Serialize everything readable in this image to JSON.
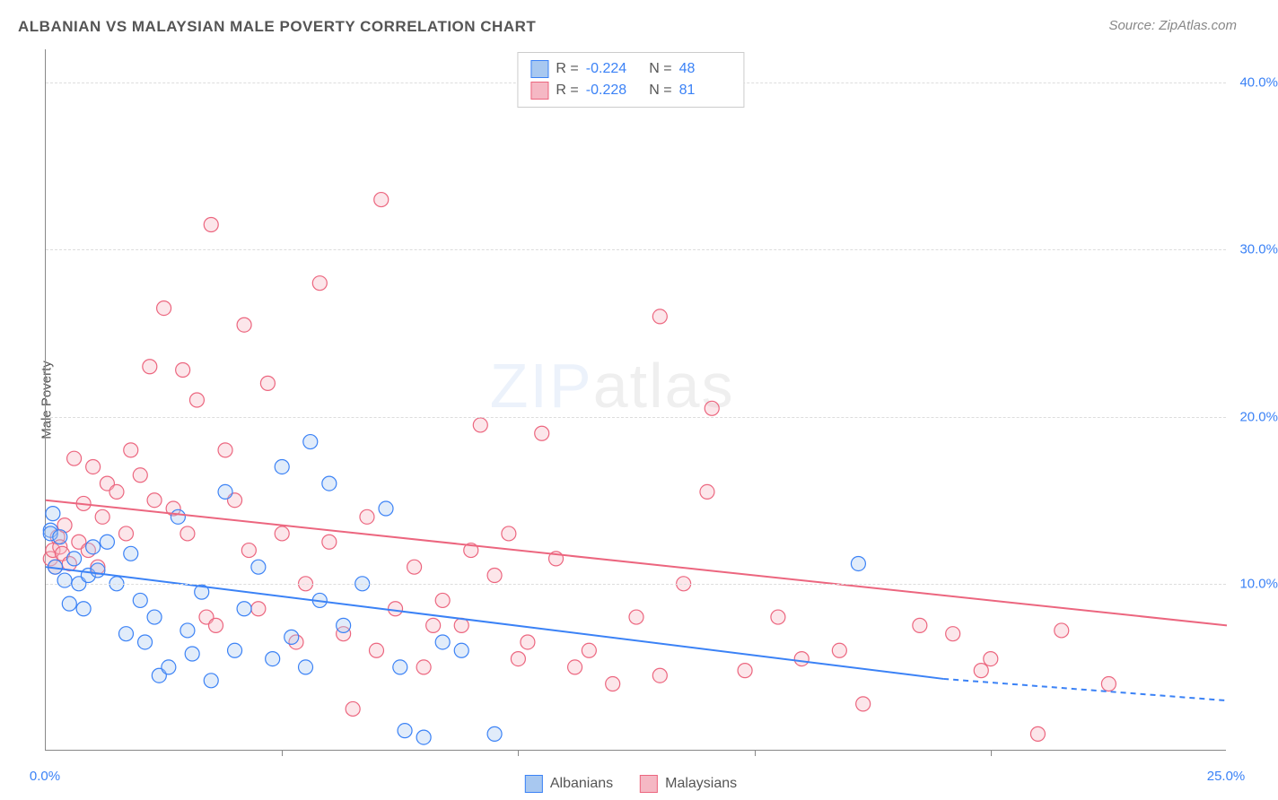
{
  "title": "ALBANIAN VS MALAYSIAN MALE POVERTY CORRELATION CHART",
  "source": "Source: ZipAtlas.com",
  "ylabel": "Male Poverty",
  "watermark": {
    "part1": "ZIP",
    "part2": "atlas"
  },
  "chart": {
    "type": "scatter",
    "background_color": "#ffffff",
    "grid_color": "#dddddd",
    "axis_color": "#888888",
    "tick_label_color": "#3b82f6",
    "title_color": "#555555",
    "title_fontsize": 17,
    "label_fontsize": 15,
    "xlim": [
      0,
      25
    ],
    "ylim": [
      0,
      42
    ],
    "xtick_step": 5,
    "ytick_step": 10,
    "xtick_labels": {
      "0": "0.0%",
      "25": "25.0%"
    },
    "ytick_labels": {
      "10": "10.0%",
      "20": "20.0%",
      "30": "30.0%",
      "40": "40.0%"
    },
    "marker_radius": 8,
    "marker_stroke_width": 1.2,
    "marker_fill_opacity": 0.35,
    "line_width": 2,
    "series": [
      {
        "name": "Albanians",
        "color_stroke": "#3b82f6",
        "color_fill": "#a8c8f0",
        "R": "-0.224",
        "N": "48",
        "trend": {
          "x0": 0,
          "y0": 11.0,
          "x1_solid": 19.0,
          "y1_solid": 4.3,
          "x1_dash": 25,
          "y1_dash": 3.0
        },
        "points": [
          [
            0.1,
            13.2
          ],
          [
            0.1,
            13.0
          ],
          [
            0.15,
            14.2
          ],
          [
            0.2,
            11.0
          ],
          [
            0.3,
            12.8
          ],
          [
            0.4,
            10.2
          ],
          [
            0.5,
            8.8
          ],
          [
            0.6,
            11.5
          ],
          [
            0.7,
            10.0
          ],
          [
            0.8,
            8.5
          ],
          [
            0.9,
            10.5
          ],
          [
            1.0,
            12.2
          ],
          [
            1.1,
            10.8
          ],
          [
            1.3,
            12.5
          ],
          [
            1.5,
            10.0
          ],
          [
            1.7,
            7.0
          ],
          [
            1.8,
            11.8
          ],
          [
            2.0,
            9.0
          ],
          [
            2.1,
            6.5
          ],
          [
            2.3,
            8.0
          ],
          [
            2.4,
            4.5
          ],
          [
            2.6,
            5.0
          ],
          [
            2.8,
            14.0
          ],
          [
            3.0,
            7.2
          ],
          [
            3.1,
            5.8
          ],
          [
            3.3,
            9.5
          ],
          [
            3.5,
            4.2
          ],
          [
            3.8,
            15.5
          ],
          [
            4.0,
            6.0
          ],
          [
            4.2,
            8.5
          ],
          [
            4.5,
            11.0
          ],
          [
            4.8,
            5.5
          ],
          [
            5.0,
            17.0
          ],
          [
            5.2,
            6.8
          ],
          [
            5.6,
            18.5
          ],
          [
            5.8,
            9.0
          ],
          [
            6.0,
            16.0
          ],
          [
            6.3,
            7.5
          ],
          [
            6.7,
            10.0
          ],
          [
            7.2,
            14.5
          ],
          [
            7.5,
            5.0
          ],
          [
            7.6,
            1.2
          ],
          [
            8.0,
            0.8
          ],
          [
            8.4,
            6.5
          ],
          [
            8.8,
            6.0
          ],
          [
            9.5,
            1.0
          ],
          [
            17.2,
            11.2
          ],
          [
            5.5,
            5.0
          ]
        ]
      },
      {
        "name": "Malaysians",
        "color_stroke": "#ec667f",
        "color_fill": "#f5b8c4",
        "R": "-0.228",
        "N": "81",
        "trend": {
          "x0": 0,
          "y0": 15.0,
          "x1_solid": 25,
          "y1_solid": 7.5,
          "x1_dash": 25,
          "y1_dash": 7.5
        },
        "points": [
          [
            0.1,
            11.5
          ],
          [
            0.15,
            12.0
          ],
          [
            0.2,
            11.0
          ],
          [
            0.25,
            12.8
          ],
          [
            0.3,
            12.2
          ],
          [
            0.35,
            11.8
          ],
          [
            0.4,
            13.5
          ],
          [
            0.5,
            11.2
          ],
          [
            0.6,
            17.5
          ],
          [
            0.7,
            12.5
          ],
          [
            0.8,
            14.8
          ],
          [
            0.9,
            12.0
          ],
          [
            1.0,
            17.0
          ],
          [
            1.1,
            11.0
          ],
          [
            1.2,
            14.0
          ],
          [
            1.3,
            16.0
          ],
          [
            1.5,
            15.5
          ],
          [
            1.7,
            13.0
          ],
          [
            1.8,
            18.0
          ],
          [
            2.0,
            16.5
          ],
          [
            2.2,
            23.0
          ],
          [
            2.3,
            15.0
          ],
          [
            2.5,
            26.5
          ],
          [
            2.7,
            14.5
          ],
          [
            2.9,
            22.8
          ],
          [
            3.0,
            13.0
          ],
          [
            3.2,
            21.0
          ],
          [
            3.4,
            8.0
          ],
          [
            3.5,
            31.5
          ],
          [
            3.6,
            7.5
          ],
          [
            3.8,
            18.0
          ],
          [
            4.0,
            15.0
          ],
          [
            4.2,
            25.5
          ],
          [
            4.3,
            12.0
          ],
          [
            4.5,
            8.5
          ],
          [
            4.7,
            22.0
          ],
          [
            5.0,
            13.0
          ],
          [
            5.3,
            6.5
          ],
          [
            5.5,
            10.0
          ],
          [
            5.8,
            28.0
          ],
          [
            6.0,
            12.5
          ],
          [
            6.3,
            7.0
          ],
          [
            6.5,
            2.5
          ],
          [
            6.8,
            14.0
          ],
          [
            7.0,
            6.0
          ],
          [
            7.1,
            33.0
          ],
          [
            7.4,
            8.5
          ],
          [
            7.8,
            11.0
          ],
          [
            8.0,
            5.0
          ],
          [
            8.4,
            9.0
          ],
          [
            8.8,
            7.5
          ],
          [
            9.2,
            19.5
          ],
          [
            9.5,
            10.5
          ],
          [
            9.8,
            13.0
          ],
          [
            10.2,
            6.5
          ],
          [
            10.5,
            19.0
          ],
          [
            10.8,
            11.5
          ],
          [
            11.2,
            5.0
          ],
          [
            11.5,
            6.0
          ],
          [
            12.0,
            4.0
          ],
          [
            12.5,
            8.0
          ],
          [
            13.0,
            26.0
          ],
          [
            13.0,
            4.5
          ],
          [
            13.5,
            10.0
          ],
          [
            14.0,
            15.5
          ],
          [
            14.1,
            20.5
          ],
          [
            14.8,
            4.8
          ],
          [
            15.5,
            8.0
          ],
          [
            16.0,
            5.5
          ],
          [
            16.8,
            6.0
          ],
          [
            17.3,
            2.8
          ],
          [
            18.5,
            7.5
          ],
          [
            19.2,
            7.0
          ],
          [
            19.8,
            4.8
          ],
          [
            20.0,
            5.5
          ],
          [
            21.0,
            1.0
          ],
          [
            21.5,
            7.2
          ],
          [
            22.5,
            4.0
          ],
          [
            8.2,
            7.5
          ],
          [
            9.0,
            12.0
          ],
          [
            10.0,
            5.5
          ]
        ]
      }
    ]
  },
  "legend_bottom": [
    {
      "label": "Albanians",
      "fill": "#a8c8f0",
      "stroke": "#3b82f6"
    },
    {
      "label": "Malaysians",
      "fill": "#f5b8c4",
      "stroke": "#ec667f"
    }
  ]
}
